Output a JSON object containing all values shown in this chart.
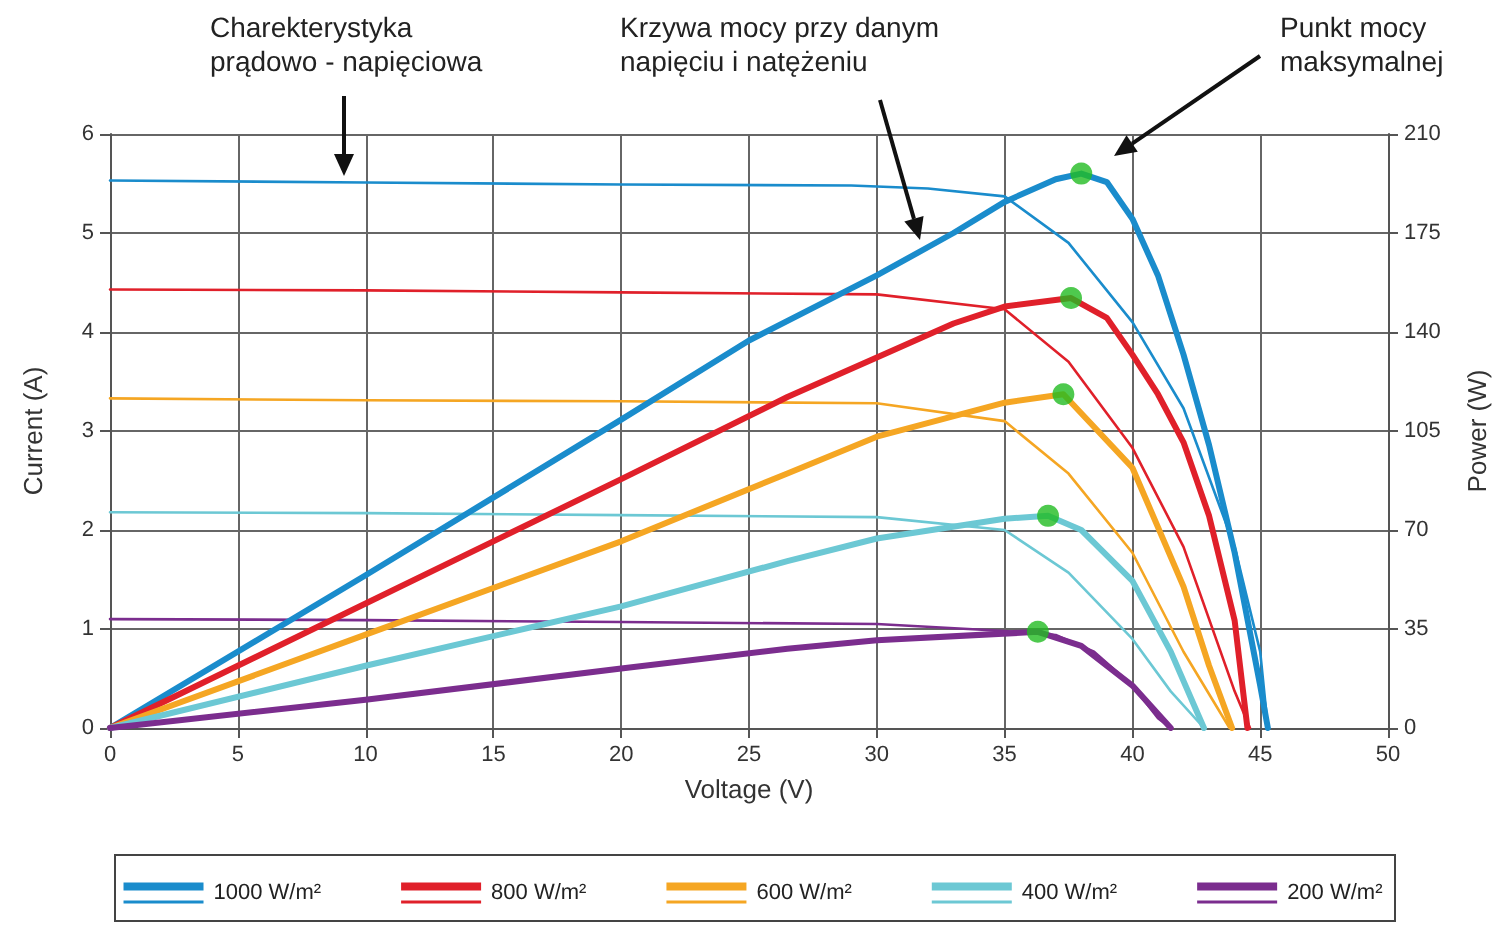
{
  "chart_data": {
    "type": "line",
    "xlabel": "Voltage (V)",
    "ylabel": "Current (A)",
    "y2label": "Power (W)",
    "xlim": [
      0,
      50
    ],
    "xticks": [
      0,
      5,
      10,
      15,
      20,
      25,
      30,
      35,
      40,
      45,
      50
    ],
    "ylim": [
      0,
      6
    ],
    "yticks": [
      0,
      1,
      2,
      3,
      4,
      5,
      6
    ],
    "y2lim": [
      0,
      210
    ],
    "y2ticks": [
      0,
      35,
      70,
      105,
      140,
      175,
      210
    ],
    "grid": true,
    "legend": "bottom",
    "marker": "none",
    "line_style": "solid",
    "annotations": [
      "Charekterystyka\nprądowo - napięciowa",
      "Krzywa mocy przy danym\nnapięciu i natężeniu",
      "Punkt mocy\nmaksymalnej"
    ],
    "series": [
      {
        "color": "#1a8ccc",
        "axis": "y",
        "x": [
          0,
          10,
          20,
          29,
          32,
          35,
          37.5,
          40,
          42,
          44,
          45,
          45.3
        ],
        "values": [
          5.53,
          5.51,
          5.49,
          5.48,
          5.45,
          5.37,
          4.9,
          4.1,
          3.23,
          1.83,
          0.77,
          0
        ]
      },
      {
        "name": "1000 W/m²",
        "color": "#1a8ccc",
        "axis": "y2",
        "x": [
          0,
          10,
          20,
          25,
          30,
          33,
          35,
          37,
          38,
          39,
          40,
          41,
          42,
          43,
          44,
          45,
          45.3
        ],
        "values": [
          0,
          54,
          109,
          137,
          160,
          175,
          186,
          194,
          196,
          193,
          180,
          160,
          132,
          100,
          62,
          15,
          0
        ]
      },
      {
        "color": "#e0202a",
        "axis": "y",
        "x": [
          0,
          10,
          20,
          30,
          35,
          37.5,
          40,
          42,
          44,
          44.6
        ],
        "values": [
          4.43,
          4.42,
          4.4,
          4.38,
          4.23,
          3.7,
          2.83,
          1.83,
          0.37,
          0
        ]
      },
      {
        "name": "800 W/m²",
        "color": "#e0202a",
        "axis": "y2",
        "x": [
          0,
          10,
          20,
          26.5,
          30,
          33,
          35,
          37.6,
          39,
          40,
          41,
          42,
          43,
          44,
          44.5
        ],
        "values": [
          0,
          44,
          88,
          117,
          131,
          143,
          149,
          152,
          145,
          132,
          118,
          101,
          75,
          38,
          0
        ]
      },
      {
        "color": "#f5a623",
        "axis": "y",
        "x": [
          0,
          10,
          20,
          30,
          35,
          37.5,
          40,
          42,
          43.8
        ],
        "values": [
          3.33,
          3.31,
          3.3,
          3.28,
          3.1,
          2.57,
          1.77,
          0.77,
          0
        ]
      },
      {
        "name": "600 W/m²",
        "color": "#f5a623",
        "axis": "y2",
        "x": [
          0,
          10,
          20,
          26.5,
          30,
          35,
          37.3,
          40,
          42,
          43,
          43.9
        ],
        "values": [
          0,
          33,
          66,
          90,
          103,
          115,
          118,
          92,
          50,
          22,
          0
        ]
      },
      {
        "color": "#6cc8d4",
        "axis": "y",
        "x": [
          0,
          10,
          20,
          30,
          35,
          37.5,
          40,
          41.5,
          42.8
        ],
        "values": [
          2.18,
          2.17,
          2.15,
          2.13,
          2,
          1.57,
          0.9,
          0.37,
          0
        ]
      },
      {
        "name": "400 W/m²",
        "color": "#6cc8d4",
        "axis": "y2",
        "x": [
          0,
          10,
          20,
          26.5,
          30,
          35,
          36.7,
          38,
          40,
          41.5,
          42.8
        ],
        "values": [
          0,
          22,
          43,
          59,
          67,
          74,
          75,
          70,
          52,
          27,
          0
        ]
      },
      {
        "color": "#7b2d8e",
        "axis": "y",
        "x": [
          0,
          10,
          20,
          30,
          35,
          37,
          38.5,
          40,
          41,
          41.5
        ],
        "values": [
          1.1,
          1.09,
          1.07,
          1.05,
          0.98,
          0.94,
          0.77,
          0.43,
          0.1,
          0
        ]
      },
      {
        "name": "200 W/m²",
        "color": "#7b2d8e",
        "axis": "y2",
        "x": [
          0,
          10,
          20,
          26.5,
          30,
          36.3,
          38,
          40,
          41.5
        ],
        "values": [
          0,
          10,
          21,
          28,
          31,
          34,
          29,
          15,
          0
        ]
      },
      {
        "type": "scatter",
        "marker": "circle",
        "color": "#22bb22",
        "axis": "y2",
        "x": [
          38,
          37.6,
          37.3,
          36.7,
          36.3
        ],
        "values": [
          196,
          152,
          118,
          75,
          34
        ]
      }
    ]
  }
}
